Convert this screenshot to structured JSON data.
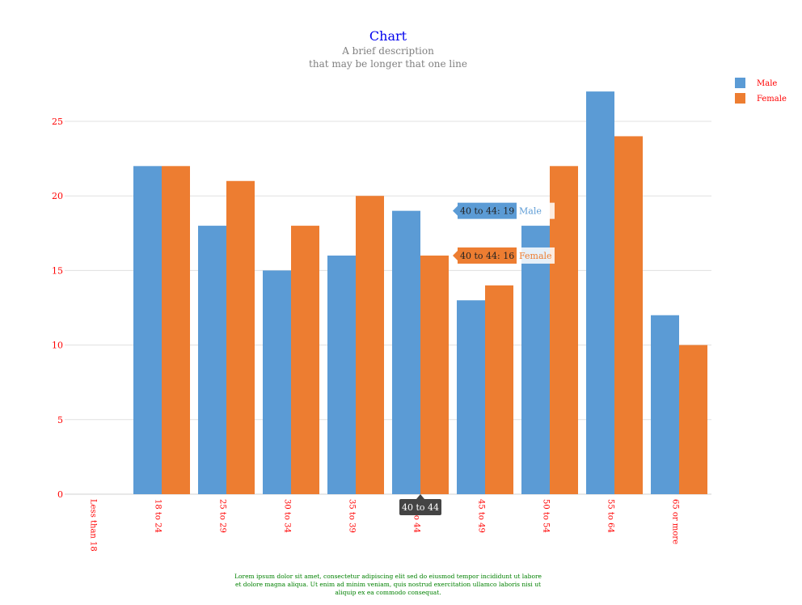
{
  "chart_data": {
    "type": "bar",
    "title": "Chart",
    "subtitle_lines": [
      "A brief description",
      "that may be longer that one line"
    ],
    "categories": [
      "Less than 18",
      "18 to 24",
      "25 to 29",
      "30 to 34",
      "35 to 39",
      "40 to 44",
      "45 to 49",
      "50 to 54",
      "55 to 64",
      "65 or more"
    ],
    "series": [
      {
        "name": "Male",
        "color": "#5b9bd5",
        "values": [
          0,
          22,
          18,
          15,
          16,
          19,
          13,
          18,
          27,
          12
        ]
      },
      {
        "name": "Female",
        "color": "#ed7d31",
        "values": [
          0,
          22,
          21,
          18,
          20,
          16,
          14,
          22,
          24,
          10
        ]
      }
    ],
    "ylim": [
      0,
      25
    ],
    "yticks": [
      0,
      5,
      10,
      15,
      20,
      25
    ],
    "grid": true,
    "legend_position": "top-right",
    "hover": {
      "category": "40 to 44",
      "x_tooltip": "40 to 44",
      "series_tooltips": [
        {
          "series": "Male",
          "value": 19,
          "text": "40 to 44: 19"
        },
        {
          "series": "Female",
          "value": 16,
          "text": "40 to 44: 16"
        }
      ]
    },
    "footnote_lines": [
      "Lorem ipsum dolor sit amet, consectetur adipiscing elit sed do eiusmod tempor incididunt ut labore",
      "et dolore magna aliqua. Ut enim ad minim veniam, quis nostrud exercitation ullamco laboris nisi ut",
      "aliquip ex ea commodo consequat."
    ],
    "colors": {
      "title": "#0000ee",
      "subtitle": "#808080",
      "tick_label": "#ff0000",
      "legend_label": "#ff0000",
      "footnote": "#008000",
      "grid": "#e0e0e0",
      "axis": "#d0d0d0",
      "tooltip_dark": "#444444"
    }
  }
}
